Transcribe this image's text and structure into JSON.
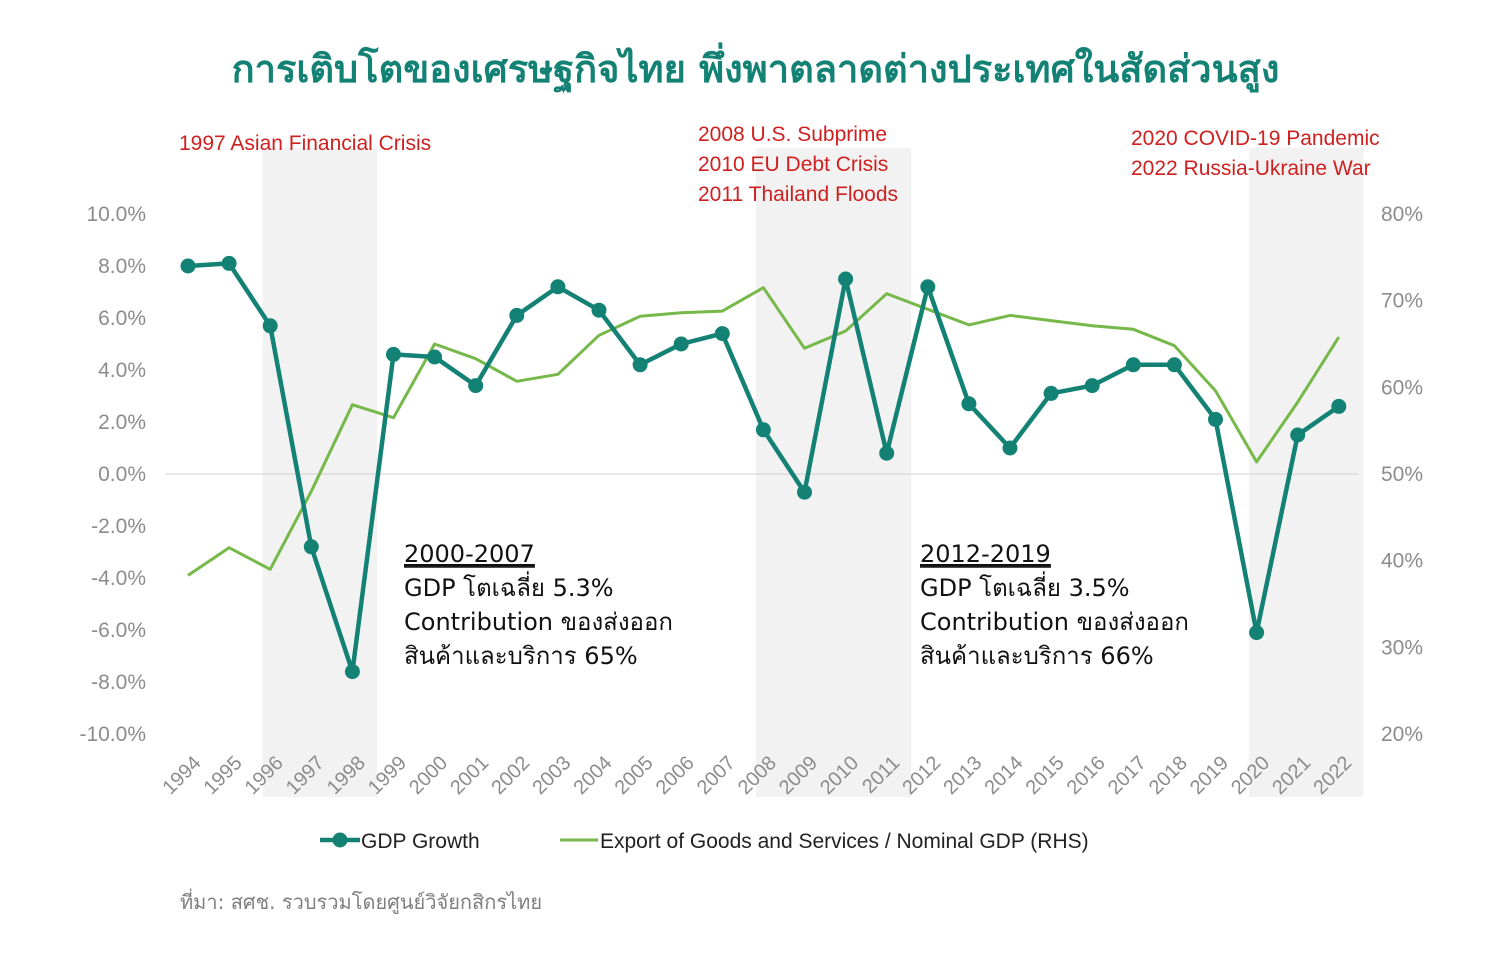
{
  "title": "การเติบโตของเศรษฐกิจไทย พึ่งพาตลาดต่างประเทศในสัดส่วนสูง",
  "source": "ที่มา: สศช. รวบรวมโดยศูนย์วิจัยกสิกรไทย",
  "colors": {
    "title": "#138275",
    "gdp": "#138275",
    "export": "#77b84a",
    "events": "#d01f1f",
    "shade": "#f2f2f2",
    "ticks": "#8c8c8c"
  },
  "events": [
    {
      "lines": [
        "1997 Asian Financial Crisis"
      ]
    },
    {
      "lines": [
        "2008 U.S. Subprime",
        "2010 EU Debt Crisis",
        "2011 Thailand Floods"
      ]
    },
    {
      "lines": [
        "2020 COVID-19 Pandemic",
        "2022 Russia-Ukraine War"
      ]
    }
  ],
  "annotations": [
    {
      "heading": "2000-2007",
      "lines": [
        "GDP โตเฉลี่ย 5.3%",
        "Contribution ของส่งออก",
        "สินค้าและบริการ 65%"
      ]
    },
    {
      "heading": "2012-2019",
      "lines": [
        "GDP โตเฉลี่ย 3.5%",
        "Contribution ของส่งออก",
        "สินค้าและบริการ 66%"
      ]
    }
  ],
  "chart_data": {
    "type": "line",
    "x": [
      "1994",
      "1995",
      "1996",
      "1997",
      "1998",
      "1999",
      "2000",
      "2001",
      "2002",
      "2003",
      "2004",
      "2005",
      "2006",
      "2007",
      "2008",
      "2009",
      "2010",
      "2011",
      "2012",
      "2013",
      "2014",
      "2015",
      "2016",
      "2017",
      "2018",
      "2019",
      "2020",
      "2021",
      "2022"
    ],
    "y_left_ticks": [
      "10.0%",
      "8.0%",
      "6.0%",
      "4.0%",
      "2.0%",
      "0.0%",
      "-2.0%",
      "-4.0%",
      "-6.0%",
      "-8.0%",
      "-10.0%"
    ],
    "y_right_ticks": [
      "80%",
      "70%",
      "60%",
      "50%",
      "40%",
      "30%",
      "20%"
    ],
    "ylim_left": [
      -10,
      10
    ],
    "ylim_right": [
      20,
      80
    ],
    "shaded_periods": [
      [
        "1996",
        "1998"
      ],
      [
        "2008",
        "2011"
      ],
      [
        "2020",
        "2022"
      ]
    ],
    "series": [
      {
        "name": "GDP Growth",
        "axis": "left",
        "marker": "circle",
        "values": [
          8.0,
          8.1,
          5.7,
          -2.8,
          -7.6,
          4.6,
          4.5,
          3.4,
          6.1,
          7.2,
          6.3,
          4.2,
          5.0,
          5.4,
          1.7,
          -0.7,
          7.5,
          0.8,
          7.2,
          2.7,
          1.0,
          3.1,
          3.4,
          4.2,
          4.2,
          2.1,
          -6.1,
          1.5,
          2.6
        ]
      },
      {
        "name": "Export of Goods and Services / Nominal GDP (RHS)",
        "axis": "right",
        "marker": "none",
        "values": [
          38.3,
          41.5,
          39.0,
          48.0,
          58.0,
          56.5,
          65.0,
          63.3,
          60.7,
          61.5,
          66.0,
          68.2,
          68.6,
          68.8,
          71.5,
          64.5,
          66.5,
          70.8,
          69.0,
          67.2,
          68.3,
          67.7,
          67.1,
          66.7,
          64.8,
          59.6,
          51.4,
          58.3,
          65.8
        ]
      }
    ]
  }
}
